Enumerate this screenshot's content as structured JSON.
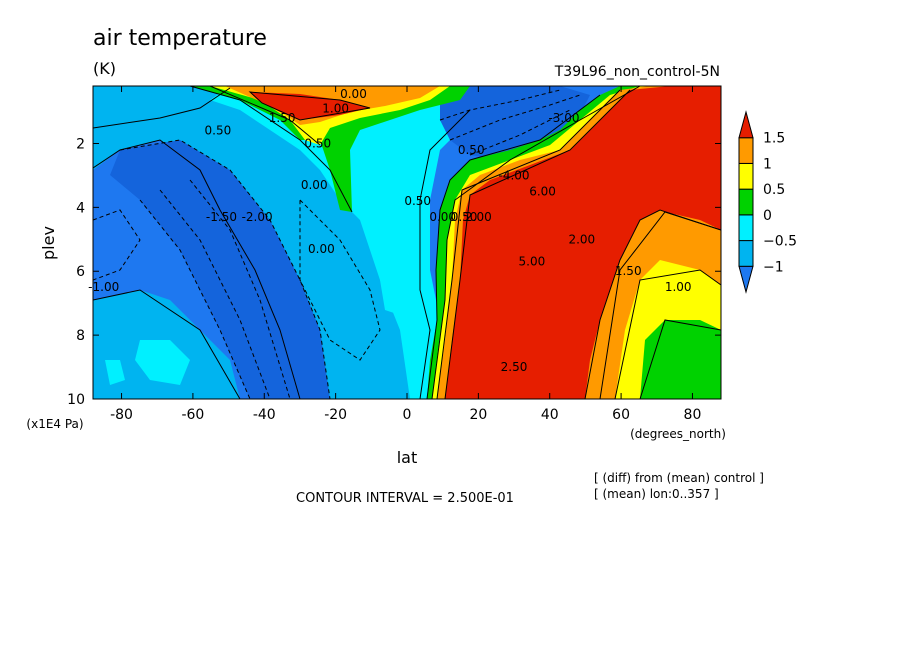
{
  "header": {
    "title": "air temperature",
    "units": "(K)",
    "experiment": "T39L96_non_control-5N"
  },
  "footer": {
    "contour_interval": "CONTOUR INTERVAL = 2.500E-01",
    "note_diff": "[ (diff) from (mean) control ]",
    "note_mean": "[ (mean) lon:0..357 ]"
  },
  "colors": {
    "lt_-1": "#1e78f0",
    "-1_-0.5": "#00b4f0",
    "-0.5_0": "#00f0ff",
    "0_0.5": "#00d200",
    "0.5_1": "#ffff00",
    "1_1.5": "#ff9a00",
    "gt_1.5": "#e61e00",
    "deep_blue": "#1464dc"
  },
  "chart_data": {
    "type": "heatmap",
    "title": "air temperature",
    "xlabel": "lat",
    "ylabel": "plev",
    "x_units_label": "(degrees_north)",
    "y_units_label": "(x1E4 Pa)",
    "xlim": [
      -88,
      88
    ],
    "ylim": [
      10,
      0.2
    ],
    "x_ticks": [
      -80,
      -60,
      -40,
      -20,
      0,
      20,
      40,
      60,
      80
    ],
    "x_tick_labels": [
      "-80",
      "-60",
      "-40",
      "-20",
      "0",
      "20",
      "40",
      "60",
      "80"
    ],
    "y_ticks": [
      2,
      4,
      6,
      8,
      10
    ],
    "y_tick_labels": [
      "2",
      "4",
      "6",
      "8",
      "10"
    ],
    "colorbar": {
      "levels": [
        -1,
        -0.5,
        0,
        0.5,
        1,
        1.5
      ],
      "labels": [
        "−1",
        "−0.5",
        "0",
        "0.5",
        "1",
        "1.5"
      ],
      "extend": "both"
    },
    "contour_labels": [
      {
        "text": "0.00",
        "lat": -15,
        "plev": 0.45
      },
      {
        "text": "1.00",
        "lat": -20,
        "plev": 0.9
      },
      {
        "text": "1.50",
        "lat": -35,
        "plev": 1.2
      },
      {
        "text": "0.50",
        "lat": -53,
        "plev": 1.6
      },
      {
        "text": "0.50",
        "lat": -25,
        "plev": 2.0
      },
      {
        "text": "0.00",
        "lat": -26,
        "plev": 3.3
      },
      {
        "text": "0.00",
        "lat": -24,
        "plev": 5.3
      },
      {
        "text": "-1.50",
        "lat": -52,
        "plev": 4.3
      },
      {
        "text": "-2.00",
        "lat": -42,
        "plev": 4.3
      },
      {
        "text": "-1.00",
        "lat": -85,
        "plev": 6.5
      },
      {
        "text": "0.50",
        "lat": 3,
        "plev": 3.8
      },
      {
        "text": "0.00",
        "lat": 10,
        "plev": 4.3
      },
      {
        "text": "0.50",
        "lat": 16,
        "plev": 4.3
      },
      {
        "text": "2.00",
        "lat": 20,
        "plev": 4.3
      },
      {
        "text": "0.50",
        "lat": 18,
        "plev": 2.2
      },
      {
        "text": "-4.00",
        "lat": 30,
        "plev": 3.0
      },
      {
        "text": "6.00",
        "lat": 38,
        "plev": 3.5
      },
      {
        "text": "2.00",
        "lat": 49,
        "plev": 5.0
      },
      {
        "text": "5.00",
        "lat": 35,
        "plev": 5.7
      },
      {
        "text": "1.50",
        "lat": 62,
        "plev": 6.0
      },
      {
        "text": "1.00",
        "lat": 76,
        "plev": 6.5
      },
      {
        "text": "2.50",
        "lat": 30,
        "plev": 9.0
      },
      {
        "text": "-3.00",
        "lat": 44,
        "plev": 1.2
      }
    ]
  }
}
